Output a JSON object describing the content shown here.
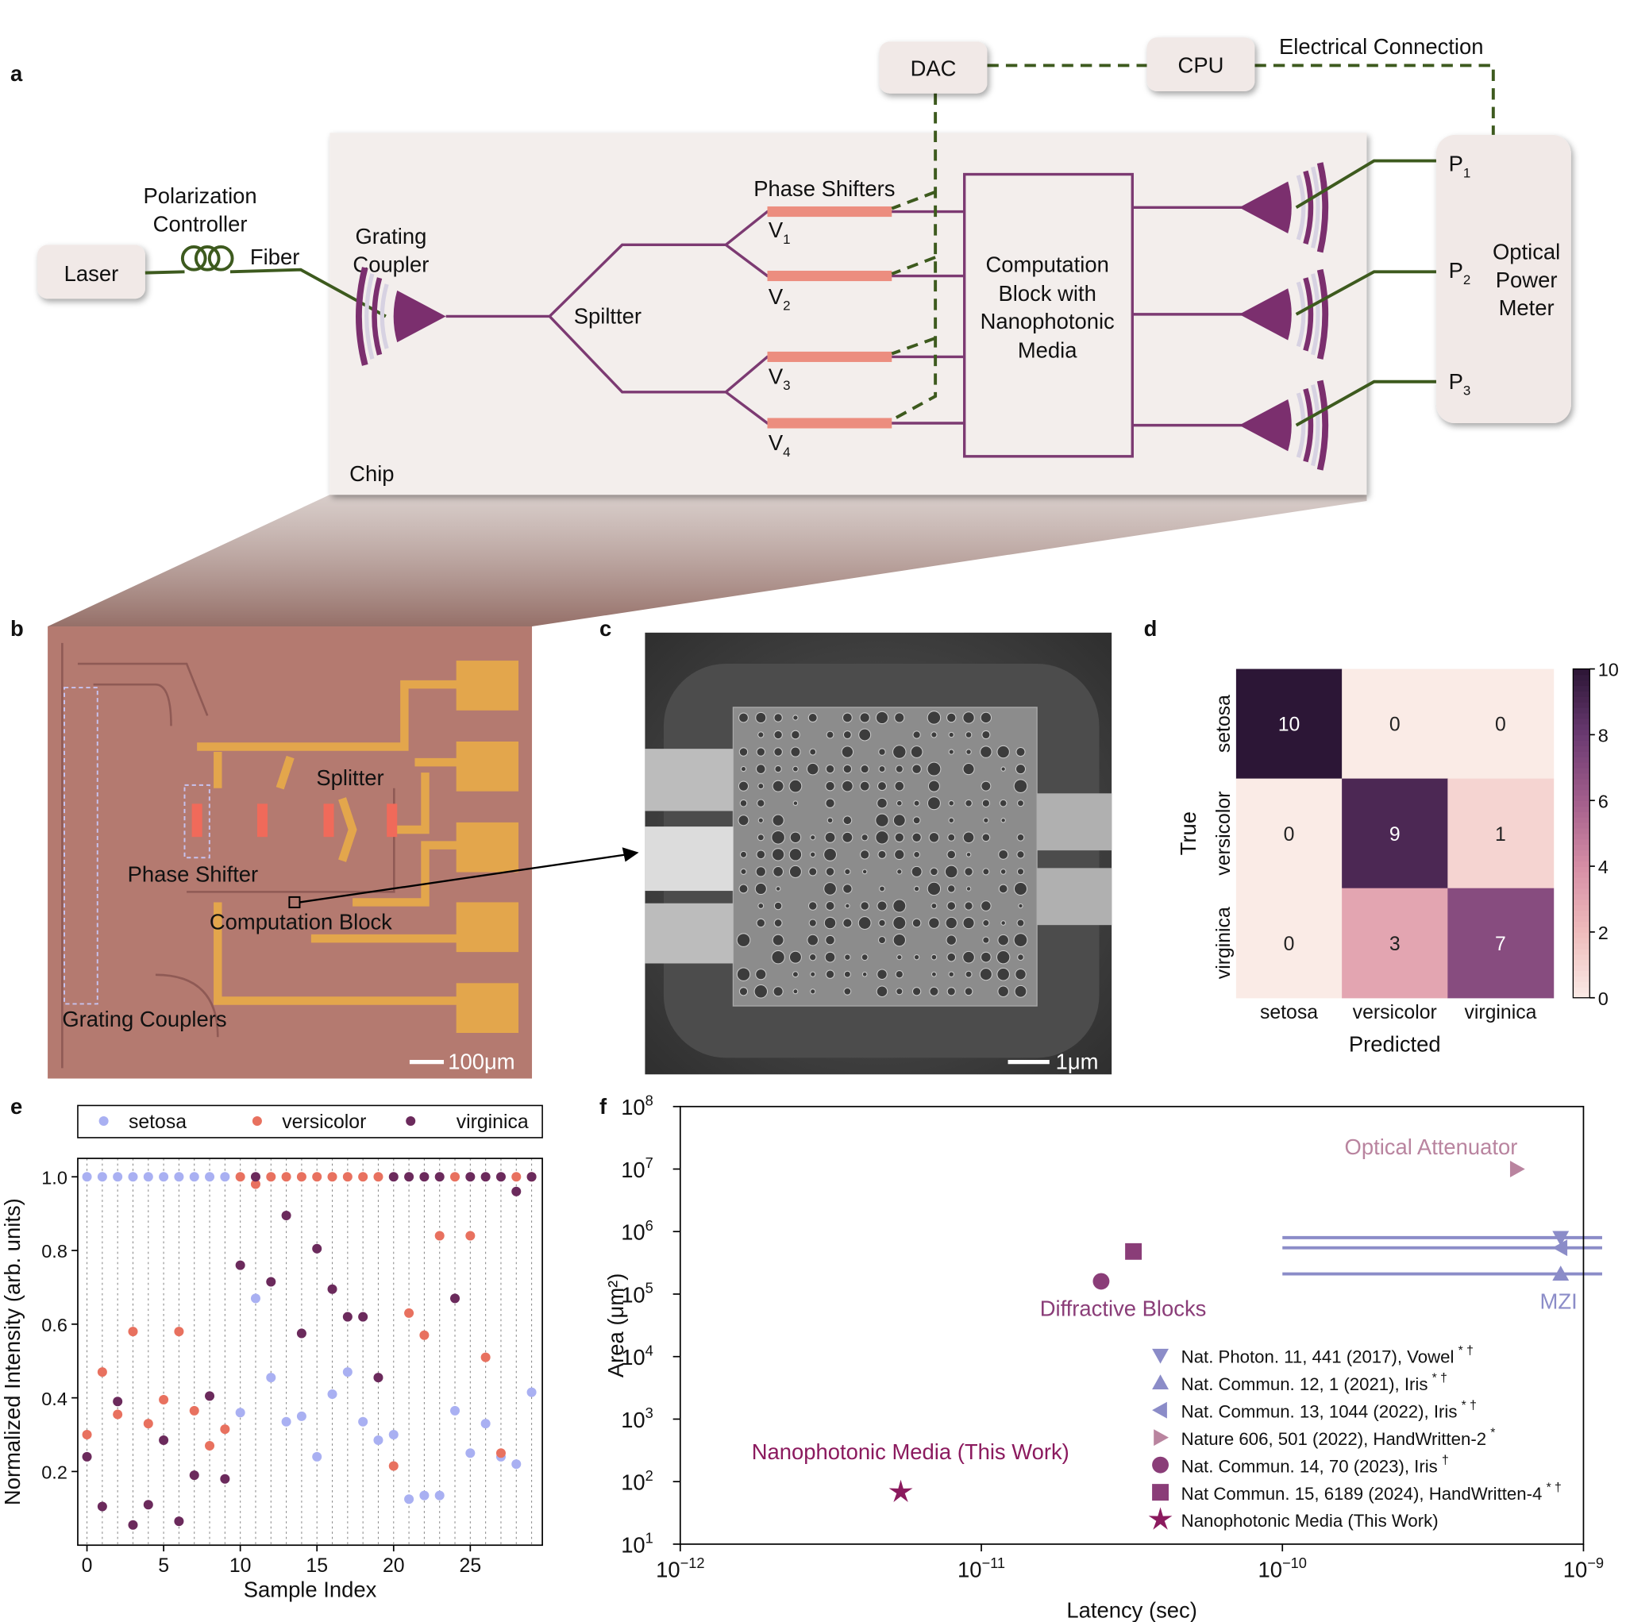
{
  "panel_labels": [
    "a",
    "b",
    "c",
    "d",
    "e",
    "f"
  ],
  "diagram": {
    "laser": "Laser",
    "polarization_controller": [
      "Polarization",
      "Controller"
    ],
    "fiber": "Fiber",
    "grating_coupler": [
      "Grating",
      "Coupler"
    ],
    "splitter": "Spiltter",
    "phase_shifters": "Phase Shifters",
    "voltages": [
      {
        "label": "V",
        "sub": "1"
      },
      {
        "label": "V",
        "sub": "2"
      },
      {
        "label": "V",
        "sub": "3"
      },
      {
        "label": "V",
        "sub": "4"
      }
    ],
    "computation_block": [
      "Computation",
      "Block with",
      "Nanophotonic",
      "Media"
    ],
    "chip": "Chip",
    "dac": "DAC",
    "cpu": "CPU",
    "electrical_connection": "Electrical Connection",
    "detectors": [
      {
        "label": "P",
        "sub": "1"
      },
      {
        "label": "P",
        "sub": "2"
      },
      {
        "label": "P",
        "sub": "3"
      }
    ],
    "power_meter": [
      "Optical",
      "Power",
      "Meter"
    ]
  },
  "micrograph": {
    "labels": [
      "Splitter",
      "Phase Shifter",
      "Computation Block",
      "Grating Couplers"
    ],
    "scale_bar": "100μm"
  },
  "sem": {
    "scale_bar": "1μm"
  },
  "chart_data": [
    {
      "type": "heatmap",
      "categories": [
        "setosa",
        "versicolor",
        "virginica"
      ],
      "values": [
        [
          10,
          0,
          0
        ],
        [
          0,
          9,
          1
        ],
        [
          0,
          3,
          7
        ]
      ],
      "xlabel": "Predicted",
      "ylabel": "True",
      "clim": [
        0,
        10
      ],
      "colorbar_ticks": [
        0,
        2,
        4,
        6,
        8,
        10
      ],
      "colormap": [
        "#faebe6",
        "#efbcbc",
        "#d68ea5",
        "#a35e8c",
        "#6b3a72",
        "#2c1636"
      ]
    },
    {
      "type": "scatter",
      "x": [
        0,
        1,
        2,
        3,
        4,
        5,
        6,
        7,
        8,
        9,
        10,
        11,
        12,
        13,
        14,
        15,
        16,
        17,
        18,
        19,
        20,
        21,
        22,
        23,
        24,
        25,
        26,
        27,
        28,
        29
      ],
      "series": [
        {
          "name": "setosa",
          "color": "#a9b0f2",
          "values": [
            1,
            1,
            1,
            1,
            1,
            1,
            1,
            1,
            1,
            1,
            0.36,
            0.67,
            0.455,
            0.335,
            0.35,
            0.24,
            0.41,
            0.47,
            0.335,
            0.285,
            0.3,
            0.125,
            0.135,
            0.135,
            0.365,
            0.25,
            0.33,
            0.24,
            0.22,
            0.415
          ]
        },
        {
          "name": "versicolor",
          "color": "#e8715f",
          "values": [
            0.3,
            0.47,
            0.355,
            0.58,
            0.33,
            0.395,
            0.58,
            0.365,
            0.27,
            0.315,
            1,
            0.98,
            1,
            1,
            1,
            1,
            1,
            1,
            1,
            1,
            0.215,
            0.63,
            0.57,
            0.84,
            1,
            0.84,
            0.51,
            0.25,
            1,
            1
          ]
        },
        {
          "name": "virginica",
          "color": "#6b2a5c",
          "values": [
            0.24,
            0.105,
            0.39,
            0.055,
            0.11,
            0.285,
            0.065,
            0.19,
            0.405,
            0.18,
            0.76,
            1,
            0.715,
            0.895,
            0.575,
            0.805,
            0.695,
            0.62,
            0.62,
            0.455,
            1,
            1,
            1,
            1,
            0.67,
            1,
            1,
            1,
            0.96,
            1
          ]
        }
      ],
      "xlim": [
        -0.6,
        29.7
      ],
      "xticks": [
        0,
        5,
        10,
        15,
        20,
        25
      ],
      "ylim": [
        0,
        1.05
      ],
      "yticks": [
        0.2,
        0.4,
        0.6,
        0.8,
        {
          "value": 1,
          "label": "1.0"
        }
      ],
      "xlabel": "Sample Index",
      "ylabel": "Normalized Intensity (arb. units)",
      "grid": "x",
      "legend": "top"
    },
    {
      "type": "scatter",
      "log_x": true,
      "log_y": true,
      "xlim": [
        1e-12,
        1e-09
      ],
      "ylim": [
        10,
        100000000
      ],
      "xticks": [
        {
          "value": 1e-12,
          "label": "10",
          "sup": "−12"
        },
        {
          "value": 1e-11,
          "label": "10",
          "sup": "−11"
        },
        {
          "value": 1e-10,
          "label": "10",
          "sup": "−10"
        },
        {
          "value": 1e-09,
          "label": "10",
          "sup": "−9"
        }
      ],
      "yticks": [
        {
          "value": 10,
          "label": "10",
          "sup": "1"
        },
        {
          "value": 100,
          "label": "10",
          "sup": "2"
        },
        {
          "value": 1000,
          "label": "10",
          "sup": "3"
        },
        {
          "value": 10000,
          "label": "10",
          "sup": "4"
        },
        {
          "value": 100000,
          "label": "10",
          "sup": "5"
        },
        {
          "value": 1000000,
          "label": "10",
          "sup": "6"
        },
        {
          "value": 10000000,
          "label": "10",
          "sup": "7"
        },
        {
          "value": 100000000,
          "label": "10",
          "sup": "8"
        }
      ],
      "xlabel": "Latency (sec)",
      "ylabel": "Area (μm²)",
      "legend": "lower right",
      "series": [
        {
          "name": "Nat. Photon. 11, 441 (2017), Vowel",
          "sup": "* †",
          "marker": "triangle-down",
          "color": "#8b8cc8",
          "x": [
            8.4e-10
          ],
          "y": [
            800000
          ],
          "xmin": [
            1e-10
          ]
        },
        {
          "name": "Nat. Commun. 12, 1 (2021), Iris",
          "sup": "* †",
          "marker": "triangle-up",
          "color": "#8b8cc8",
          "x": [
            8.4e-10
          ],
          "y": [
            210000
          ],
          "xmin": [
            1e-10
          ]
        },
        {
          "name": "Nat. Commun. 13, 1044 (2022), Iris",
          "sup": "* †",
          "marker": "triangle-left",
          "color": "#8b8cc8",
          "x": [
            8.4e-10
          ],
          "y": [
            550000
          ],
          "xmin": [
            1e-10
          ]
        },
        {
          "name": "Nature 606, 501 (2022), HandWritten-2",
          "sup": "*",
          "marker": "triangle-right",
          "color": "#b9849f",
          "x": [
            6e-10
          ],
          "y": [
            10000000
          ]
        },
        {
          "name": "Nat. Commun. 14, 70 (2023), Iris",
          "sup": "†",
          "marker": "circle",
          "color": "#8a3d78",
          "x": [
            2.5e-11
          ],
          "y": [
            160000
          ]
        },
        {
          "name": "Nat Commun. 15, 6189 (2024), HandWritten-4",
          "sup": "* †",
          "marker": "square",
          "color": "#8a3d78",
          "x": [
            3.2e-11
          ],
          "y": [
            480000
          ]
        },
        {
          "name": "Nanophotonic Media (This Work)",
          "marker": "star",
          "color": "#8b1a5e",
          "x": [
            5.4e-12
          ],
          "y": [
            68
          ]
        }
      ],
      "annotations": [
        {
          "text": "Optical Attenuator",
          "color": "#b9849f"
        },
        {
          "text": "Diffractive Blocks",
          "color": "#8a3d78"
        },
        {
          "text": "MZI",
          "color": "#8b8cc8"
        },
        {
          "text": "Nanophotonic Media (This Work)",
          "color": "#8b1a5e"
        }
      ]
    }
  ]
}
